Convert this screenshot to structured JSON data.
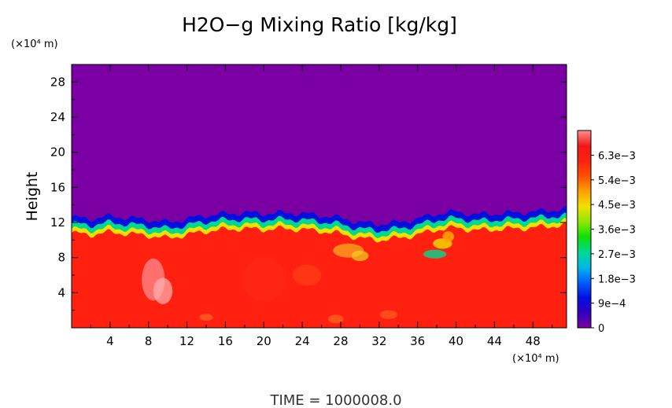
{
  "chart_data": {
    "type": "heatmap",
    "title": "H2O−g Mixing Ratio [kg/kg]",
    "xlabel": "",
    "ylabel": "Height",
    "x_unit_label": "(×10⁴ m)",
    "y_unit_label": "(×10⁴ m)",
    "footer": "TIME  =  1000008.0",
    "xlim": [
      0,
      51.5
    ],
    "ylim": [
      0,
      30
    ],
    "x_ticks": [
      4,
      8,
      12,
      16,
      20,
      24,
      28,
      32,
      36,
      40,
      44,
      48
    ],
    "y_ticks": [
      4,
      8,
      12,
      16,
      20,
      24,
      28
    ],
    "colorbar": {
      "range": [
        0,
        0.0072
      ],
      "tick_values": [
        0,
        0.0009,
        0.0018,
        0.0027,
        0.0036,
        0.0045,
        0.0054,
        0.0063
      ],
      "tick_labels": [
        "0",
        "9e−4",
        "1.8e−3",
        "2.7e−3",
        "3.6e−3",
        "4.5e−3",
        "5.4e−3",
        "6.3e−3"
      ]
    },
    "field": {
      "upper_value": 0,
      "lower_value": 0.006,
      "transition_height_profile": [
        [
          0,
          10.8
        ],
        [
          2,
          10.6
        ],
        [
          4,
          10.9
        ],
        [
          6,
          10.7
        ],
        [
          8,
          10.5
        ],
        [
          10,
          10.2
        ],
        [
          12,
          10.6
        ],
        [
          14,
          11.0
        ],
        [
          16,
          11.2
        ],
        [
          18,
          11.3
        ],
        [
          20,
          11.2
        ],
        [
          22,
          11.3
        ],
        [
          24,
          11.2
        ],
        [
          26,
          11.0
        ],
        [
          28,
          10.7
        ],
        [
          30,
          10.2
        ],
        [
          32,
          10.0
        ],
        [
          34,
          10.2
        ],
        [
          36,
          10.6
        ],
        [
          38,
          11.2
        ],
        [
          40,
          11.4
        ],
        [
          42,
          11.1
        ],
        [
          44,
          11.2
        ],
        [
          46,
          11.3
        ],
        [
          48,
          11.4
        ],
        [
          50,
          11.6
        ],
        [
          51.5,
          11.7
        ]
      ]
    }
  },
  "colors": {
    "scale": [
      "#7a00a4",
      "#3000c0",
      "#0010e0",
      "#0060ff",
      "#00b8e8",
      "#00d890",
      "#10e000",
      "#90e800",
      "#f0e000",
      "#ffa000",
      "#ff5000",
      "#ff2010",
      "#f01818",
      "#ff9090"
    ]
  }
}
